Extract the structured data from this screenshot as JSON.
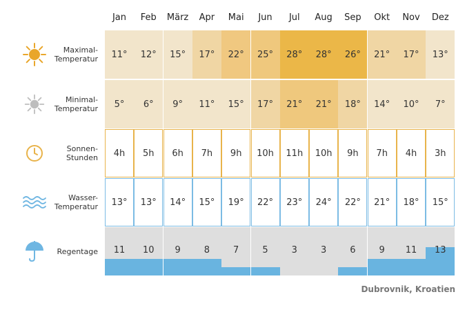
{
  "months": [
    "Jan",
    "Feb",
    "März",
    "Apr",
    "Mai",
    "Jun",
    "Jul",
    "Aug",
    "Sep",
    "Okt",
    "Nov",
    "Dez"
  ],
  "rows": {
    "max_temp": {
      "label_line1": "Maximal-",
      "label_line2": "Temperatur",
      "icon": "sun-icon",
      "values": [
        "11°",
        "12°",
        "15°",
        "17°",
        "22°",
        "25°",
        "28°",
        "28°",
        "26°",
        "21°",
        "17°",
        "13°"
      ],
      "colors": [
        "#f2e5cb",
        "#f2e5cb",
        "#f2e5cb",
        "#f0d6a4",
        "#f0c880",
        "#efc87d",
        "#ebb748",
        "#ebb748",
        "#ebb748",
        "#f0d6a4",
        "#f0d6a4",
        "#f2e5cb"
      ]
    },
    "min_temp": {
      "label_line1": "Minimal-",
      "label_line2": "Temperatur",
      "icon": "grey-sun-icon",
      "values": [
        "5°",
        "6°",
        "9°",
        "11°",
        "15°",
        "17°",
        "21°",
        "21°",
        "18°",
        "14°",
        "10°",
        "7°"
      ],
      "colors": [
        "#f2e5cb",
        "#f2e5cb",
        "#f2e5cb",
        "#f2e5cb",
        "#f2e5cb",
        "#f0d6a4",
        "#efc87d",
        "#efc87d",
        "#f0d6a4",
        "#f2e5cb",
        "#f2e5cb",
        "#f2e5cb"
      ]
    },
    "sun_hours": {
      "label_line1": "Sonnen-",
      "label_line2": "Stunden",
      "icon": "clock-icon",
      "border_color": "#e8b34a",
      "values": [
        "4h",
        "5h",
        "6h",
        "7h",
        "9h",
        "10h",
        "11h",
        "10h",
        "9h",
        "7h",
        "4h",
        "3h"
      ]
    },
    "water_temp": {
      "label_line1": "Wasser-",
      "label_line2": "Temperatur",
      "icon": "waves-icon",
      "border_color": "#7bbbe4",
      "values": [
        "13°",
        "13°",
        "14°",
        "15°",
        "19°",
        "22°",
        "23°",
        "24°",
        "22°",
        "21°",
        "18°",
        "15°"
      ]
    },
    "rain_days": {
      "label_line1": "Regentage",
      "icon": "umbrella-icon",
      "values": [
        "11",
        "10",
        "9",
        "8",
        "7",
        "5",
        "3",
        "3",
        "6",
        "9",
        "11",
        "13"
      ],
      "fill_fraction": [
        0.35,
        0.35,
        0.35,
        0.35,
        0.17,
        0.17,
        0,
        0,
        0.17,
        0.35,
        0.35,
        0.58
      ]
    }
  },
  "location": "Dubrovnik, Kroatien",
  "colors": {
    "sun_orange": "#e9a62a",
    "grey_sun": "#bdbdbd",
    "clock": "#e8b34a",
    "water": "#6fb6e2",
    "rain_bg": "#dedede",
    "rain_fill": "#69b4e0"
  }
}
